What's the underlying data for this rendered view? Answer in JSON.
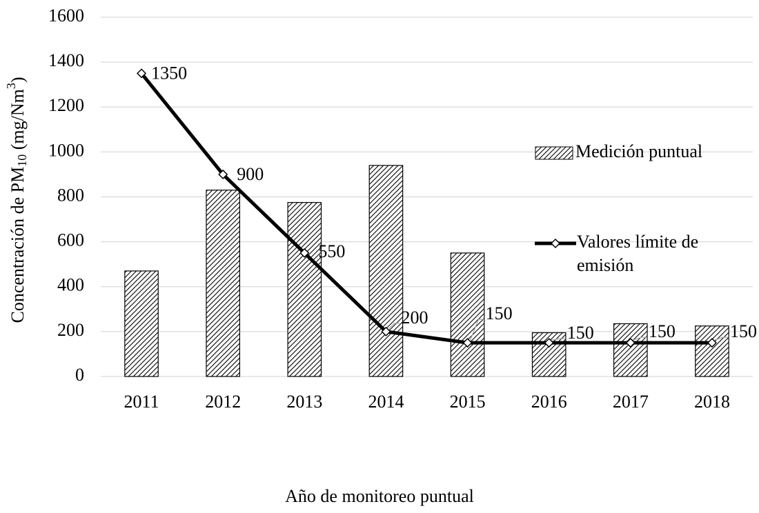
{
  "chart_data": {
    "type": "bar",
    "x_label": "Año de monitoreo puntual",
    "y_label": [
      "Concentración de PM",
      "10",
      " (mg/Nm",
      "3",
      ")"
    ],
    "categories": [
      "2011",
      "2012",
      "2013",
      "2014",
      "2015",
      "2016",
      "2017",
      "2018"
    ],
    "series": [
      {
        "name": "Medición puntual",
        "type": "bar",
        "color": "#000000",
        "values": [
          470,
          830,
          775,
          940,
          550,
          195,
          235,
          225
        ]
      },
      {
        "name": "Valores límite de emisión",
        "type": "line",
        "color": "#000000",
        "values": [
          1350,
          900,
          550,
          200,
          150,
          150,
          150,
          150
        ]
      }
    ],
    "ylim": [
      0,
      1600
    ],
    "yticks": [
      0,
      200,
      400,
      600,
      800,
      1000,
      1200,
      1400,
      1600
    ],
    "grid": true
  }
}
